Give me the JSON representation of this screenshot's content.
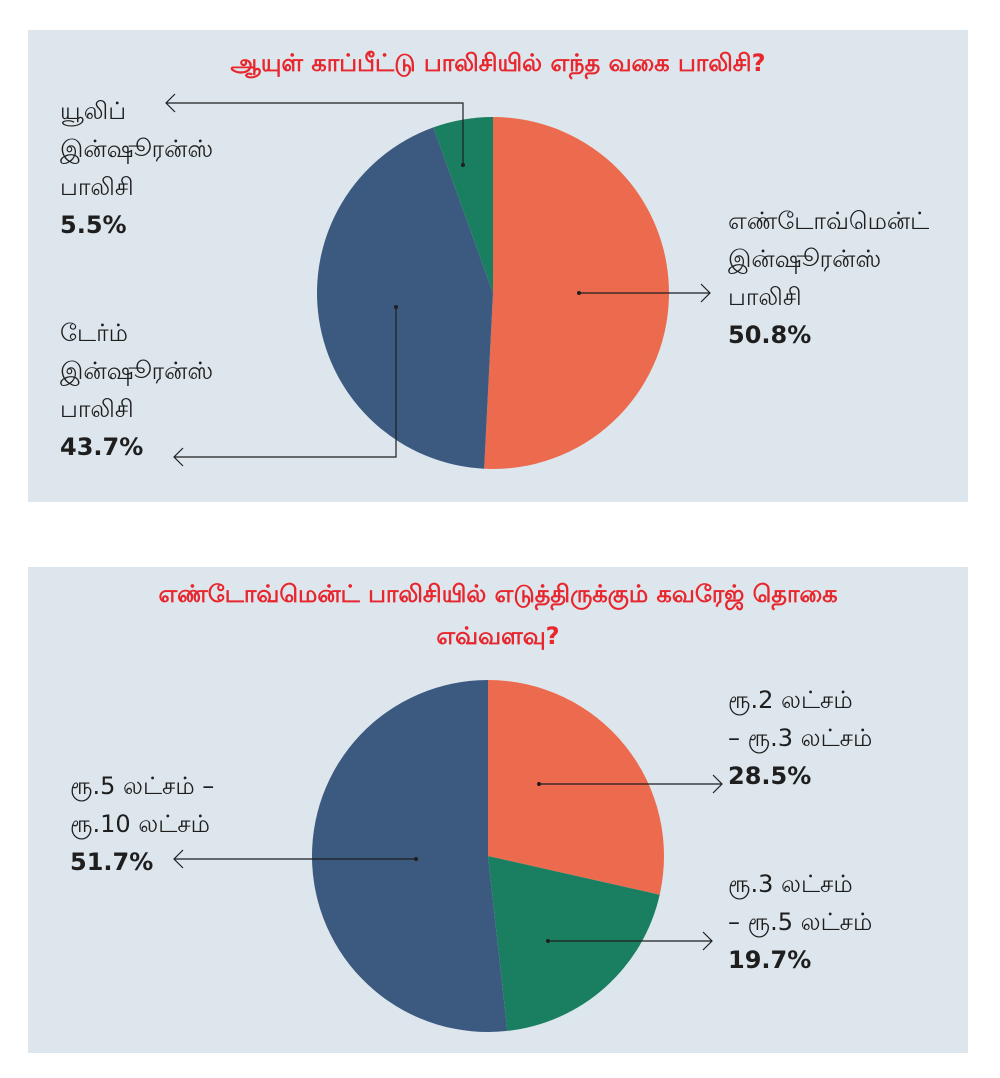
{
  "colors": {
    "orange": "#ec6b4e",
    "navy": "#3c5a80",
    "green": "#1a7f60",
    "title_red": "#e8262d",
    "panel_bg": "#dde6ec"
  },
  "chart_data": [
    {
      "type": "pie",
      "title": "ஆயுள் காப்பீட்டு பாலிசியில் எந்த வகை பாலிசி?",
      "slices": [
        {
          "label_lines": [
            "எண்டோவ்மென்ட்",
            "இன்ஷூரன்ஸ்",
            "பாலிசி"
          ],
          "value": 50.8,
          "value_label": "50.8%",
          "color": "#ec6b4e"
        },
        {
          "label_lines": [
            "டேர்ம்",
            "இன்ஷூரன்ஸ்",
            "பாலிசி"
          ],
          "value": 43.7,
          "value_label": "43.7%",
          "color": "#3c5a80"
        },
        {
          "label_lines": [
            "யூலிப்",
            "இன்ஷூரன்ஸ்",
            "பாலிசி"
          ],
          "value": 5.5,
          "value_label": "5.5%",
          "color": "#1a7f60"
        }
      ]
    },
    {
      "type": "pie",
      "title_lines": [
        "எண்டோவ்மென்ட் பாலிசியில் எடுத்திருக்கும் கவரேஜ் தொகை",
        "எவ்வளவு?"
      ],
      "slices": [
        {
          "label_lines": [
            "ரூ.2 லட்சம்",
            "– ரூ.3 லட்சம்"
          ],
          "value": 28.5,
          "value_label": "28.5%",
          "color": "#ec6b4e"
        },
        {
          "label_lines": [
            "ரூ.3 லட்சம்",
            "– ரூ.5 லட்சம்"
          ],
          "value": 19.7,
          "value_label": "19.7%",
          "color": "#1a7f60"
        },
        {
          "label_lines": [
            "ரூ.5 லட்சம் –",
            "ரூ.10 லட்சம்"
          ],
          "value": 51.7,
          "value_label": "51.7%",
          "color": "#3c5a80"
        }
      ]
    }
  ]
}
